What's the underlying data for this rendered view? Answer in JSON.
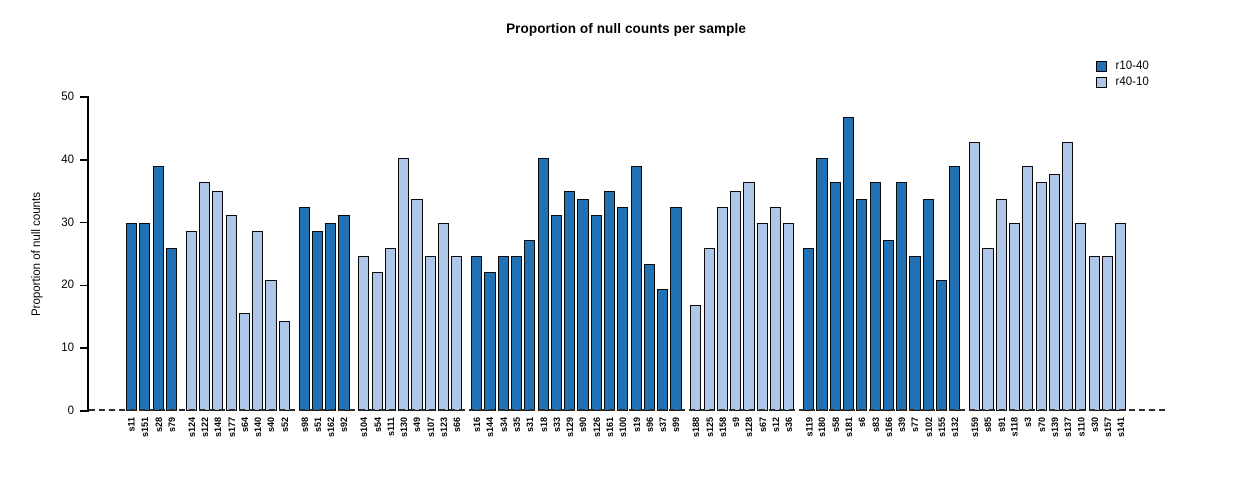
{
  "chart_data": {
    "type": "bar",
    "title": "Proportion of null counts per sample",
    "ylabel": "Proportion of null counts",
    "xlabel": "",
    "ylim": [
      0,
      50
    ],
    "yticks": [
      0,
      10,
      20,
      30,
      40,
      50
    ],
    "grid": false,
    "zero_line": "dashed-black",
    "legend_position": "top-right",
    "series": [
      {
        "name": "r10-40",
        "color": "#2171b5"
      },
      {
        "name": "r40-10",
        "color": "#aec6e8"
      }
    ],
    "clusters": [
      {
        "series": "r10-40",
        "labels": [
          "s11",
          "s151",
          "s28",
          "s79"
        ],
        "values": [
          29.9,
          29.9,
          39.0,
          26.0
        ]
      },
      {
        "series": "r40-10",
        "labels": [
          "s124",
          "s122",
          "s148",
          "s177",
          "s64",
          "s140",
          "s40",
          "s52"
        ],
        "values": [
          28.6,
          36.4,
          35.1,
          31.2,
          15.6,
          28.6,
          20.8,
          14.3
        ]
      },
      {
        "series": "r10-40",
        "labels": [
          "s98",
          "s51",
          "s162",
          "s92"
        ],
        "values": [
          32.5,
          28.6,
          29.9,
          31.2
        ]
      },
      {
        "series": "r40-10",
        "labels": [
          "s104",
          "s54",
          "s111",
          "s130",
          "s49",
          "s107",
          "s123",
          "s66"
        ],
        "values": [
          24.7,
          22.1,
          26.0,
          40.3,
          33.8,
          24.7,
          29.9,
          24.7
        ]
      },
      {
        "series": "r10-40",
        "labels": [
          "s16",
          "s144",
          "s34",
          "s35",
          "s31",
          "s18",
          "s33",
          "s129",
          "s90",
          "s126",
          "s161",
          "s100",
          "s19",
          "s96",
          "s37",
          "s99"
        ],
        "values": [
          24.7,
          22.1,
          24.7,
          24.7,
          27.3,
          40.3,
          31.2,
          35.1,
          33.8,
          31.2,
          35.1,
          32.5,
          39.0,
          23.4,
          19.5,
          32.5
        ]
      },
      {
        "series": "r40-10",
        "labels": [
          "s188",
          "s125",
          "s158",
          "s9",
          "s128",
          "s67",
          "s12",
          "s36"
        ],
        "values": [
          16.9,
          26.0,
          32.5,
          35.1,
          36.4,
          29.9,
          32.5,
          29.9
        ]
      },
      {
        "series": "r10-40",
        "labels": [
          "s119",
          "s180",
          "s58",
          "s181",
          "s6",
          "s83",
          "s166",
          "s39",
          "s77",
          "s102",
          "s155",
          "s132"
        ],
        "values": [
          26.0,
          40.3,
          36.4,
          46.8,
          33.8,
          36.4,
          27.3,
          36.4,
          24.7,
          33.8,
          20.8,
          39.0
        ]
      },
      {
        "series": "r40-10",
        "labels": [
          "s159",
          "s85",
          "s91",
          "s118",
          "s3",
          "s70",
          "s139",
          "s137",
          "s110",
          "s30",
          "s157",
          "s141"
        ],
        "values": [
          42.9,
          26.0,
          33.8,
          29.9,
          39.0,
          36.4,
          37.7,
          42.9,
          29.9,
          24.7,
          24.7,
          29.9
        ]
      }
    ]
  }
}
